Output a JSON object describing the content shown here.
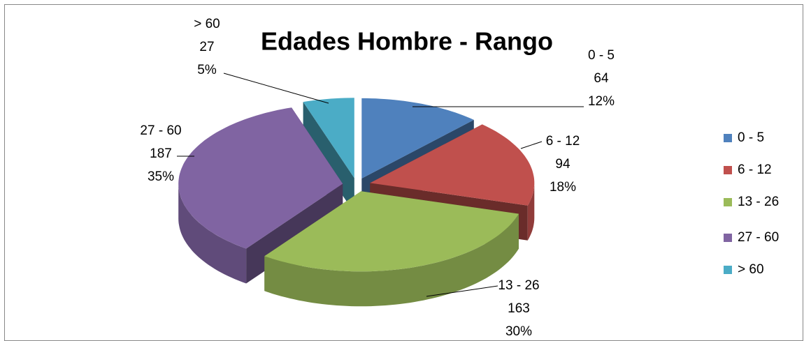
{
  "chart_data": {
    "type": "pie3d",
    "title": "Edades Hombre - Rango",
    "categories": [
      "0 - 5",
      "6 - 12",
      "13 - 26",
      "27 - 60",
      "> 60"
    ],
    "values": [
      64,
      94,
      163,
      187,
      27
    ],
    "percent_labels": [
      "12%",
      "18%",
      "30%",
      "35%",
      "5%"
    ],
    "colors": [
      "#4f81bd",
      "#c0504d",
      "#9bbb59",
      "#8064a2",
      "#4bacc6"
    ],
    "legend": "right"
  }
}
